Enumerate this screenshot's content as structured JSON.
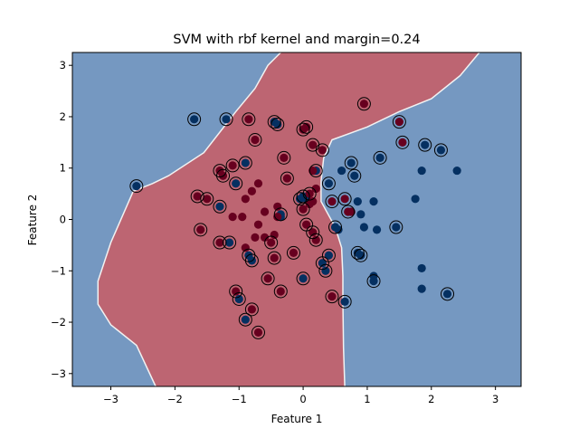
{
  "chart_data": {
    "type": "scatter",
    "title": "SVM with rbf kernel and margin=0.24",
    "xlabel": "Feature 1",
    "ylabel": "Feature 2",
    "xlim": [
      -3.6,
      3.4
    ],
    "ylim": [
      -3.25,
      3.25
    ],
    "xticks": [
      -3,
      -2,
      -1,
      0,
      1,
      2,
      3
    ],
    "yticks": [
      -3,
      -2,
      -1,
      0,
      1,
      2,
      3
    ],
    "xtick_labels": [
      "−3",
      "−2",
      "−1",
      "0",
      "1",
      "2",
      "3"
    ],
    "ytick_labels": [
      "−3",
      "−2",
      "−1",
      "0",
      "1",
      "2",
      "3"
    ],
    "grid": false,
    "legend": false,
    "colors": {
      "region_class_0": "#7598c1",
      "region_class_1": "#bd6572",
      "boundary": "#f2f2f2",
      "class_0_point": "#053061",
      "class_1_point": "#67001f",
      "support_vector_ring": "#000000"
    },
    "decision_boundary_left": [
      [
        2.75,
        3.25
      ],
      [
        2.45,
        2.8
      ],
      [
        2.0,
        2.35
      ],
      [
        1.5,
        2.1
      ],
      [
        1.0,
        1.8
      ],
      [
        0.45,
        1.55
      ],
      [
        0.32,
        1.2
      ],
      [
        0.28,
        0.75
      ],
      [
        0.28,
        0.35
      ],
      [
        0.5,
        -0.15
      ],
      [
        0.6,
        -0.55
      ],
      [
        0.62,
        -1.1
      ],
      [
        0.62,
        -1.6
      ],
      [
        0.63,
        -2.5
      ],
      [
        0.65,
        -3.25
      ]
    ],
    "decision_boundary_right": [
      [
        -0.35,
        3.25
      ],
      [
        -0.55,
        3.0
      ],
      [
        -0.75,
        2.55
      ],
      [
        -1.05,
        2.1
      ],
      [
        -1.55,
        1.3
      ],
      [
        -2.1,
        0.85
      ],
      [
        -2.35,
        0.7
      ],
      [
        -2.65,
        0.55
      ],
      [
        -3.0,
        -0.45
      ],
      [
        -3.2,
        -1.2
      ],
      [
        -3.2,
        -1.65
      ],
      [
        -3.0,
        -2.05
      ],
      [
        -2.6,
        -2.45
      ],
      [
        -2.3,
        -3.25
      ]
    ],
    "series": [
      {
        "class": 0,
        "points": [
          [
            -2.6,
            0.65
          ],
          [
            -1.7,
            1.95
          ],
          [
            -1.2,
            1.95
          ],
          [
            -1.05,
            0.7
          ],
          [
            -0.9,
            1.1
          ],
          [
            -1.3,
            0.25
          ],
          [
            -1.15,
            -0.45
          ],
          [
            -0.45,
            1.9
          ],
          [
            -0.4,
            1.85
          ],
          [
            -0.35,
            0.1
          ],
          [
            -0.35,
            0.05
          ],
          [
            -0.85,
            -0.7
          ],
          [
            -0.8,
            -0.8
          ],
          [
            -1.0,
            -1.55
          ],
          [
            -0.9,
            -1.95
          ],
          [
            -0.05,
            0.4
          ],
          [
            0.0,
            0.45
          ],
          [
            0.05,
            0.4
          ],
          [
            0.2,
            0.95
          ],
          [
            0.4,
            0.7
          ],
          [
            0.3,
            -0.85
          ],
          [
            0.35,
            -1.0
          ],
          [
            0.4,
            -0.7
          ],
          [
            0.5,
            -0.15
          ],
          [
            0.55,
            -0.2
          ],
          [
            0.6,
            0.95
          ],
          [
            0.75,
            1.1
          ],
          [
            0.8,
            0.85
          ],
          [
            0.85,
            0.35
          ],
          [
            0.9,
            0.1
          ],
          [
            0.95,
            -0.15
          ],
          [
            0.85,
            -0.65
          ],
          [
            0.9,
            -0.7
          ],
          [
            1.1,
            0.35
          ],
          [
            1.2,
            1.2
          ],
          [
            1.15,
            -0.2
          ],
          [
            1.1,
            -1.1
          ],
          [
            1.1,
            -1.2
          ],
          [
            1.45,
            -0.15
          ],
          [
            1.75,
            0.4
          ],
          [
            1.85,
            0.95
          ],
          [
            1.85,
            -0.95
          ],
          [
            1.85,
            -1.35
          ],
          [
            1.9,
            1.45
          ],
          [
            2.15,
            1.35
          ],
          [
            2.25,
            -1.45
          ],
          [
            2.4,
            0.95
          ],
          [
            0.0,
            -1.15
          ],
          [
            0.65,
            -1.6
          ]
        ]
      },
      {
        "class": 1,
        "points": [
          [
            -1.65,
            0.45
          ],
          [
            -1.5,
            0.4
          ],
          [
            -1.3,
            0.95
          ],
          [
            -1.25,
            0.85
          ],
          [
            -1.1,
            1.05
          ],
          [
            -0.85,
            1.95
          ],
          [
            -0.75,
            1.55
          ],
          [
            -1.6,
            -0.2
          ],
          [
            -1.3,
            -0.45
          ],
          [
            -1.1,
            0.05
          ],
          [
            -0.95,
            0.05
          ],
          [
            -0.9,
            0.4
          ],
          [
            -0.8,
            0.55
          ],
          [
            -0.7,
            0.7
          ],
          [
            -0.6,
            0.15
          ],
          [
            -0.4,
            0.25
          ],
          [
            -0.4,
            0.05
          ],
          [
            -0.7,
            -0.1
          ],
          [
            -0.75,
            -0.35
          ],
          [
            -0.6,
            -0.35
          ],
          [
            -0.5,
            -0.45
          ],
          [
            -0.45,
            -0.3
          ],
          [
            -0.45,
            -0.75
          ],
          [
            -0.55,
            -1.15
          ],
          [
            -0.35,
            -1.4
          ],
          [
            -0.9,
            -0.55
          ],
          [
            -1.05,
            -1.4
          ],
          [
            -0.8,
            -1.75
          ],
          [
            -0.7,
            -2.2
          ],
          [
            -0.3,
            1.2
          ],
          [
            -0.25,
            0.8
          ],
          [
            0.0,
            1.75
          ],
          [
            0.05,
            1.8
          ],
          [
            0.15,
            1.45
          ],
          [
            0.3,
            1.35
          ],
          [
            0.15,
            0.95
          ],
          [
            0.1,
            0.5
          ],
          [
            0.15,
            0.35
          ],
          [
            0.1,
            0.3
          ],
          [
            0.2,
            0.6
          ],
          [
            0.05,
            -0.1
          ],
          [
            -0.15,
            -0.65
          ],
          [
            0.15,
            -0.25
          ],
          [
            0.2,
            -0.4
          ],
          [
            0.45,
            -1.5
          ],
          [
            0.45,
            0.35
          ],
          [
            0.65,
            0.4
          ],
          [
            0.7,
            0.15
          ],
          [
            0.75,
            0.15
          ],
          [
            0.95,
            2.25
          ],
          [
            1.5,
            1.9
          ],
          [
            1.55,
            1.5
          ],
          [
            0.0,
            0.2
          ]
        ]
      }
    ],
    "support_vector_indices": {
      "class_0": [
        0,
        1,
        2,
        3,
        4,
        5,
        6,
        7,
        8,
        9,
        11,
        12,
        13,
        14,
        15,
        16,
        18,
        19,
        20,
        21,
        22,
        23,
        26,
        27,
        31,
        32,
        34,
        37,
        38,
        43,
        44,
        45,
        47,
        48
      ],
      "class_1": [
        0,
        1,
        2,
        3,
        4,
        5,
        6,
        7,
        8,
        20,
        22,
        23,
        24,
        26,
        27,
        28,
        29,
        30,
        31,
        32,
        33,
        34,
        36,
        40,
        41,
        42,
        43,
        44,
        45,
        46,
        47,
        49,
        50,
        51,
        52
      ]
    }
  }
}
